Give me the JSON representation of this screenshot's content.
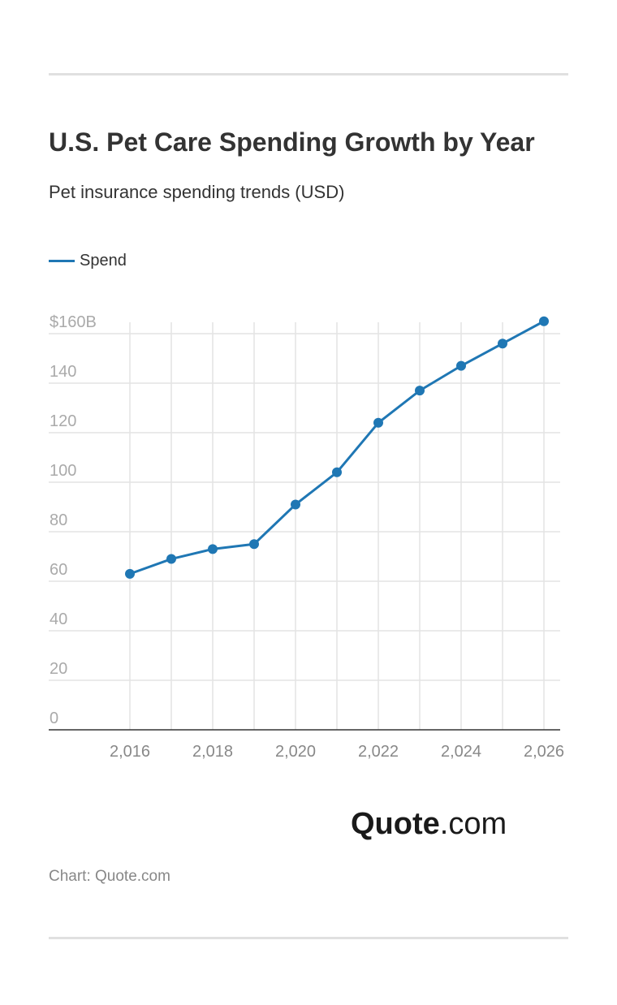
{
  "header": {
    "title": "U.S. Pet Care Spending Growth by Year",
    "subtitle": "Pet insurance spending trends (USD)"
  },
  "chart_data": {
    "type": "line",
    "title": "U.S. Pet Care Spending Growth by Year",
    "subtitle": "Pet insurance spending trends (USD)",
    "x": [
      2016,
      2017,
      2018,
      2019,
      2020,
      2021,
      2022,
      2023,
      2024,
      2025,
      2026
    ],
    "series": [
      {
        "name": "Spend",
        "values": [
          63,
          69,
          73,
          75,
          91,
          104,
          124,
          137,
          147,
          156,
          165
        ],
        "color": "#1f77b4"
      }
    ],
    "ylim": [
      0,
      160
    ],
    "y_ticks": [
      "0",
      "20",
      "40",
      "60",
      "80",
      "100",
      "120",
      "140",
      "$160B"
    ],
    "x_ticks": [
      "2,016",
      "2,018",
      "2,020",
      "2,022",
      "2,024",
      "2,026"
    ],
    "grid": true,
    "legend": "top-left"
  },
  "logo": {
    "bold": "Quote",
    "light": ".com"
  },
  "footer": {
    "source": "Chart: Quote.com"
  }
}
